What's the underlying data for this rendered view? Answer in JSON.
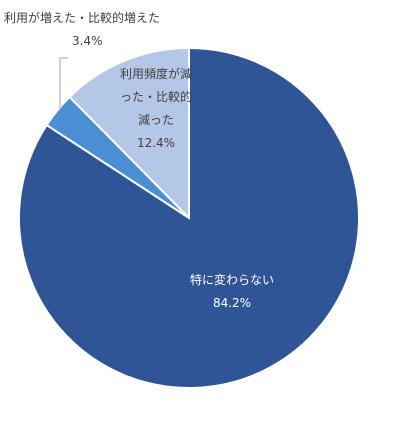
{
  "chart_data": {
    "type": "pie",
    "categories": [
      "特に変わらない",
      "利用が増えた・比較的増えた",
      "利用頻度が減った・比較的減った"
    ],
    "values": [
      84.2,
      3.4,
      12.4
    ],
    "value_labels": [
      "84.2%",
      "3.4%",
      "12.4%"
    ],
    "colors": [
      "#2f5597",
      "#4a8fd4",
      "#b4c7e7"
    ]
  }
}
